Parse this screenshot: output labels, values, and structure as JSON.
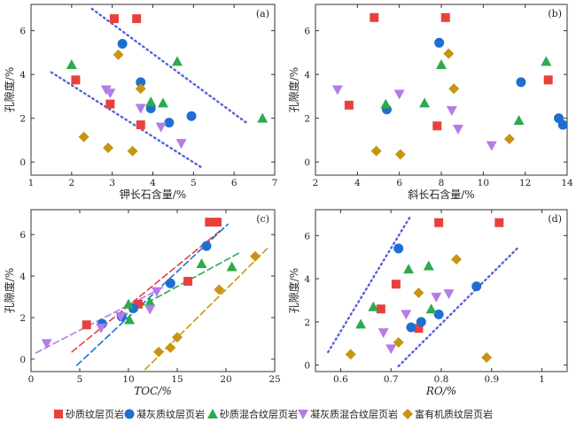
{
  "colors": {
    "砂质纹层页岩": "#e8413c",
    "凝灰质纹层页岩": "#1f6fd1",
    "砂质混合纹层页岩": "#2eaa4a",
    "凝灰质混合纹层页岩": "#b57be8",
    "富有机质纹层页岩": "#c89512",
    "trend_blue": "#5561d8"
  },
  "legend": [
    {
      "name": "砂质纹层页岩",
      "marker": "square"
    },
    {
      "name": "凝灰质纹层页岩",
      "marker": "circle"
    },
    {
      "name": "砂质混合纹层页岩",
      "marker": "triangle-up"
    },
    {
      "name": "凝灰质混合纹层页岩",
      "marker": "triangle-down"
    },
    {
      "name": "富有机质纹层页岩",
      "marker": "diamond"
    }
  ],
  "chart_data": [
    {
      "id": "a",
      "panel_label": "(a)",
      "type": "scatter",
      "xlabel": "钾长石含量/%",
      "ylabel": "孔隙度/%",
      "xlim": [
        1,
        7
      ],
      "ylim": [
        -0.6,
        7.2
      ],
      "xticks": [
        1,
        2,
        3,
        4,
        5,
        6,
        7
      ],
      "yticks": [
        0,
        2,
        4,
        6
      ],
      "series": [
        {
          "name": "砂质纹层页岩",
          "points": [
            [
              3.05,
              6.55
            ],
            [
              3.6,
              6.55
            ],
            [
              2.1,
              3.75
            ],
            [
              2.95,
              2.65
            ],
            [
              3.7,
              1.7
            ]
          ]
        },
        {
          "name": "凝灰质纹层页岩",
          "points": [
            [
              3.25,
              5.4
            ],
            [
              3.7,
              3.65
            ],
            [
              3.95,
              2.45
            ],
            [
              4.4,
              1.8
            ],
            [
              4.95,
              2.1
            ]
          ]
        },
        {
          "name": "砂质混合纹层页岩",
          "points": [
            [
              2.0,
              4.45
            ],
            [
              4.6,
              4.6
            ],
            [
              3.95,
              2.75
            ],
            [
              4.25,
              2.7
            ],
            [
              6.7,
              2.0
            ]
          ]
        },
        {
          "name": "凝灰质混合纹层页岩",
          "points": [
            [
              2.85,
              3.3
            ],
            [
              2.95,
              3.15
            ],
            [
              3.7,
              2.45
            ],
            [
              4.2,
              1.6
            ],
            [
              4.7,
              0.85
            ]
          ]
        },
        {
          "name": "富有机质纹层页岩",
          "points": [
            [
              3.15,
              4.9
            ],
            [
              3.7,
              3.35
            ],
            [
              2.3,
              1.15
            ],
            [
              2.9,
              0.65
            ],
            [
              3.5,
              0.5
            ]
          ]
        }
      ],
      "trend_lines": [
        {
          "style": "dotted",
          "color": "trend_blue",
          "from": [
            2.5,
            7.0
          ],
          "to": [
            6.3,
            1.8
          ]
        },
        {
          "style": "dotted",
          "color": "trend_blue",
          "from": [
            1.5,
            4.1
          ],
          "to": [
            5.2,
            -0.25
          ]
        }
      ]
    },
    {
      "id": "b",
      "panel_label": "(b)",
      "type": "scatter",
      "xlabel": "斜长石含量/%",
      "ylabel": "孔隙度/%",
      "xlim": [
        2,
        14
      ],
      "ylim": [
        -0.6,
        7.2
      ],
      "xticks": [
        2,
        4,
        6,
        8,
        10,
        12,
        14
      ],
      "yticks": [
        0,
        2,
        4,
        6
      ],
      "series": [
        {
          "name": "砂质纹层页岩",
          "points": [
            [
              4.8,
              6.6
            ],
            [
              8.2,
              6.6
            ],
            [
              13.1,
              3.75
            ],
            [
              3.6,
              2.6
            ],
            [
              7.8,
              1.65
            ]
          ]
        },
        {
          "name": "凝灰质纹层页岩",
          "points": [
            [
              7.9,
              5.45
            ],
            [
              11.8,
              3.65
            ],
            [
              5.4,
              2.4
            ],
            [
              13.6,
              2.0
            ],
            [
              13.8,
              1.7
            ]
          ]
        },
        {
          "name": "砂质混合纹层页岩",
          "points": [
            [
              8.0,
              4.45
            ],
            [
              13.0,
              4.6
            ],
            [
              5.35,
              2.65
            ],
            [
              7.2,
              2.7
            ],
            [
              11.7,
              1.9
            ]
          ]
        },
        {
          "name": "凝灰质混合纹层页岩",
          "points": [
            [
              3.05,
              3.3
            ],
            [
              6.0,
              3.1
            ],
            [
              8.5,
              2.35
            ],
            [
              8.8,
              1.5
            ],
            [
              10.4,
              0.75
            ]
          ]
        },
        {
          "name": "富有机质纹层页岩",
          "points": [
            [
              8.35,
              4.95
            ],
            [
              8.6,
              3.35
            ],
            [
              4.9,
              0.5
            ],
            [
              6.05,
              0.35
            ],
            [
              11.25,
              1.05
            ]
          ]
        }
      ],
      "trend_lines": []
    },
    {
      "id": "c",
      "panel_label": "(c)",
      "type": "scatter",
      "xlabel": "TOC/%",
      "ylabel": "孔隙度/%",
      "xlim": [
        0,
        25
      ],
      "ylim": [
        -0.6,
        7.2
      ],
      "xticks": [
        0,
        5,
        10,
        15,
        20,
        25
      ],
      "yticks": [
        0,
        2,
        4,
        6
      ],
      "series": [
        {
          "name": "砂质纹层页岩",
          "points": [
            [
              18.3,
              6.6
            ],
            [
              19.1,
              6.6
            ],
            [
              16.1,
              3.75
            ],
            [
              11.0,
              2.65
            ],
            [
              5.7,
              1.65
            ]
          ]
        },
        {
          "name": "凝灰质纹层页岩",
          "points": [
            [
              18.0,
              5.45
            ],
            [
              14.3,
              3.65
            ],
            [
              10.5,
              2.45
            ],
            [
              9.3,
              2.05
            ],
            [
              7.3,
              1.7
            ]
          ]
        },
        {
          "name": "砂质混合纹层页岩",
          "points": [
            [
              17.5,
              4.6
            ],
            [
              20.6,
              4.45
            ],
            [
              12.2,
              2.75
            ],
            [
              10.0,
              2.65
            ],
            [
              10.1,
              1.9
            ]
          ]
        },
        {
          "name": "凝灰质混合纹层页岩",
          "points": [
            [
              12.9,
              3.25
            ],
            [
              12.2,
              2.4
            ],
            [
              9.2,
              2.05
            ],
            [
              7.2,
              1.5
            ],
            [
              1.6,
              0.75
            ]
          ]
        },
        {
          "name": "富有机质纹层页岩",
          "points": [
            [
              23.0,
              4.95
            ],
            [
              19.3,
              3.35
            ],
            [
              15.0,
              1.05
            ],
            [
              14.3,
              0.55
            ],
            [
              13.1,
              0.35
            ]
          ]
        }
      ],
      "trend_lines": [
        {
          "style": "dashed",
          "color": "砂质纹层页岩",
          "from": [
            4.2,
            0.35
          ],
          "to": [
            19.7,
            6.3
          ]
        },
        {
          "style": "dashed",
          "color": "凝灰质纹层页岩",
          "from": [
            4.7,
            -0.3
          ],
          "to": [
            20.2,
            6.5
          ]
        },
        {
          "style": "dashed",
          "color": "砂质混合纹层页岩",
          "from": [
            9.3,
            2.05
          ],
          "to": [
            21.3,
            5.1
          ]
        },
        {
          "style": "dashed",
          "color": "凝灰质混合纹层页岩",
          "from": [
            0.5,
            0.3
          ],
          "to": [
            13.7,
            3.5
          ]
        },
        {
          "style": "dashed",
          "color": "富有机质纹层页岩",
          "from": [
            11.7,
            -0.5
          ],
          "to": [
            24.4,
            5.4
          ]
        }
      ]
    },
    {
      "id": "d",
      "panel_label": "(d)",
      "type": "scatter",
      "xlabel": "RO/%",
      "ylabel": "孔隙度/%",
      "xlim": [
        0.55,
        1.05
      ],
      "ylim": [
        -0.3,
        7.2
      ],
      "xticks": [
        0.6,
        0.7,
        0.8,
        0.9,
        1.0
      ],
      "yticks": [
        0,
        2,
        4,
        6
      ],
      "series": [
        {
          "name": "砂质纹层页岩",
          "points": [
            [
              0.795,
              6.6
            ],
            [
              0.915,
              6.6
            ],
            [
              0.71,
              3.75
            ],
            [
              0.68,
              2.6
            ],
            [
              0.755,
              1.7
            ]
          ]
        },
        {
          "name": "凝灰质纹层页岩",
          "points": [
            [
              0.715,
              5.4
            ],
            [
              0.87,
              3.65
            ],
            [
              0.795,
              2.35
            ],
            [
              0.76,
              2.0
            ],
            [
              0.74,
              1.75
            ]
          ]
        },
        {
          "name": "砂质混合纹层页岩",
          "points": [
            [
              0.775,
              4.6
            ],
            [
              0.735,
              4.45
            ],
            [
              0.665,
              2.7
            ],
            [
              0.78,
              2.6
            ],
            [
              0.64,
              1.9
            ]
          ]
        },
        {
          "name": "凝灰质混合纹层页岩",
          "points": [
            [
              0.815,
              3.3
            ],
            [
              0.79,
              3.15
            ],
            [
              0.73,
              2.35
            ],
            [
              0.685,
              1.5
            ],
            [
              0.7,
              0.75
            ]
          ]
        },
        {
          "name": "富有机质纹层页岩",
          "points": [
            [
              0.83,
              4.9
            ],
            [
              0.755,
              3.35
            ],
            [
              0.715,
              1.05
            ],
            [
              0.62,
              0.5
            ],
            [
              0.89,
              0.35
            ]
          ]
        }
      ],
      "trend_lines": [
        {
          "style": "dotted",
          "color": "trend_blue",
          "from": [
            0.575,
            0.6
          ],
          "to": [
            0.74,
            6.95
          ]
        },
        {
          "style": "dotted",
          "color": "trend_blue",
          "from": [
            0.715,
            -0.05
          ],
          "to": [
            0.955,
            5.5
          ]
        }
      ]
    }
  ]
}
